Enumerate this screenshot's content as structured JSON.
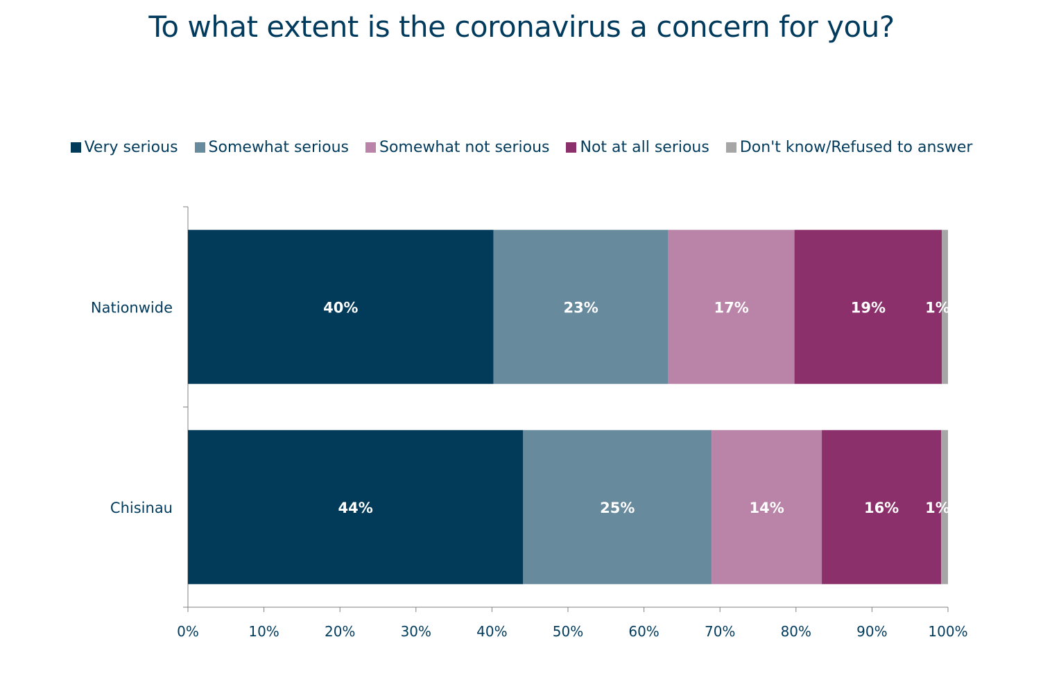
{
  "chart_data": {
    "type": "bar",
    "orientation": "horizontal",
    "stacked": true,
    "title": "To what extent is the coronavirus a concern for you?",
    "categories": [
      "Nationwide",
      "Chisinau"
    ],
    "series": [
      {
        "name": "Very serious",
        "color": "#023a5a",
        "values": [
          40.2,
          44.1
        ],
        "labels": [
          "40%",
          "44%"
        ]
      },
      {
        "name": "Somewhat serious",
        "color": "#678a9d",
        "values": [
          23.0,
          24.8
        ],
        "labels": [
          "23%",
          "25%"
        ]
      },
      {
        "name": "Somewhat not serious",
        "color": "#b984a8",
        "values": [
          16.6,
          14.5
        ],
        "labels": [
          "17%",
          "14%"
        ]
      },
      {
        "name": "Not at all serious",
        "color": "#8b306b",
        "values": [
          19.4,
          15.7
        ],
        "labels": [
          "19%",
          "16%"
        ]
      },
      {
        "name": "Don't know/Refused to answer",
        "color": "#a6a6a6",
        "values": [
          0.8,
          0.9
        ],
        "labels": [
          "1%",
          "1%"
        ]
      }
    ],
    "xlim": [
      0,
      100
    ],
    "x_ticks": [
      "0%",
      "10%",
      "20%",
      "30%",
      "40%",
      "50%",
      "60%",
      "70%",
      "80%",
      "90%",
      "100%"
    ],
    "xlabel": "",
    "ylabel": "",
    "grid": false,
    "legend_position": "top"
  }
}
